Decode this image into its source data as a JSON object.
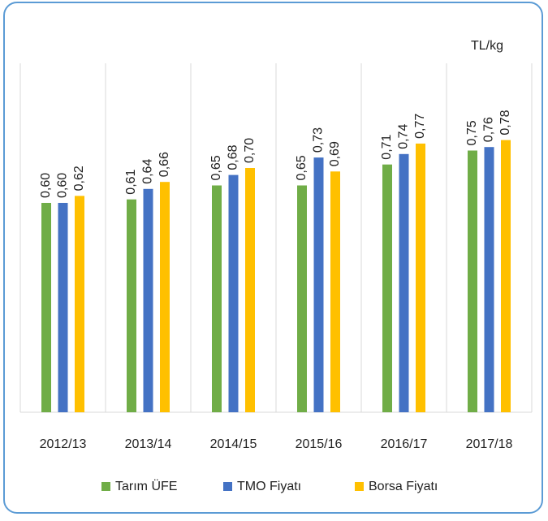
{
  "chart_data": {
    "type": "bar",
    "unit_label": "TL/kg",
    "categories": [
      "2012/13",
      "2013/14",
      "2014/15",
      "2015/16",
      "2016/17",
      "2017/18"
    ],
    "series": [
      {
        "name": "Tarım ÜFE",
        "color": "#70ad47",
        "values": [
          0.6,
          0.61,
          0.65,
          0.65,
          0.71,
          0.75
        ],
        "value_labels": [
          "0,60",
          "0,61",
          "0,65",
          "0,65",
          "0,71",
          "0,75"
        ]
      },
      {
        "name": "TMO Fiyatı",
        "color": "#4472c4",
        "values": [
          0.6,
          0.64,
          0.68,
          0.73,
          0.74,
          0.76
        ],
        "value_labels": [
          "0,60",
          "0,64",
          "0,68",
          "0,73",
          "0,74",
          "0,76"
        ]
      },
      {
        "name": "Borsa Fiyatı",
        "color": "#ffc000",
        "values": [
          0.62,
          0.66,
          0.7,
          0.69,
          0.77,
          0.78
        ],
        "value_labels": [
          "0,62",
          "0,66",
          "0,70",
          "0,69",
          "0,77",
          "0,78"
        ]
      }
    ],
    "ylim": [
      0,
      1
    ],
    "legend": "bottom"
  }
}
